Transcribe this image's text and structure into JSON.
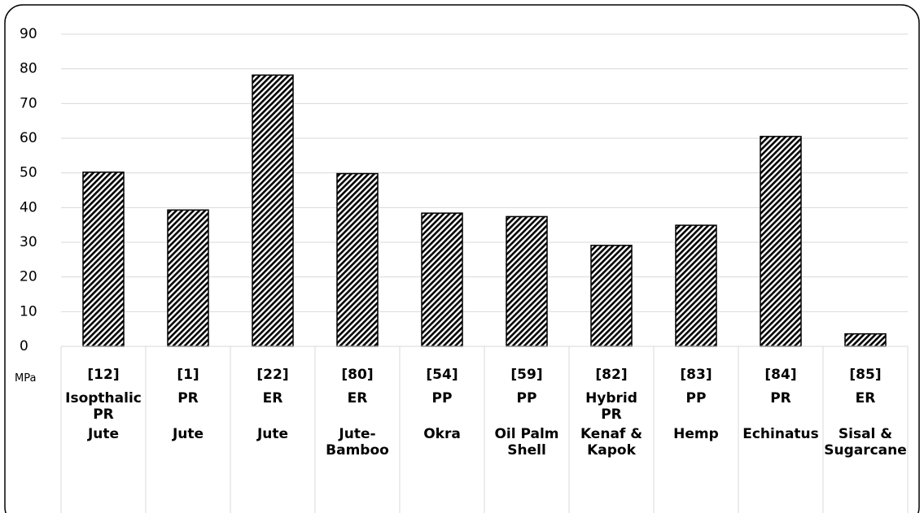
{
  "chart_data": {
    "type": "bar",
    "y_axis_label": "MPa",
    "categories": [
      "[12]",
      "[1]",
      "[22]",
      "[80]",
      "[54]",
      "[59]",
      "[82]",
      "[83]",
      "[84]",
      "[85]"
    ],
    "matrix": [
      "Isopthalic\nPR",
      "PR",
      "ER",
      "ER",
      "PP",
      "PP",
      "Hybrid\nPR",
      "PP",
      "PR",
      "ER"
    ],
    "fiber": [
      "Jute",
      "Jute",
      "Jute",
      "Jute-\nBamboo",
      "Okra",
      "Oil Palm\nShell",
      "Kenaf &\nKapok",
      "Hemp",
      "Echinatus",
      "Sisal &\nSugarcane"
    ],
    "values": [
      50.2,
      39.3,
      78.2,
      49.8,
      38.4,
      37.4,
      29.1,
      34.9,
      60.5,
      3.6
    ],
    "ylim": [
      0,
      90
    ],
    "yticks": [
      0,
      10,
      20,
      30,
      40,
      50,
      60,
      70,
      80,
      90
    ],
    "grid": true,
    "color": "#000000"
  }
}
